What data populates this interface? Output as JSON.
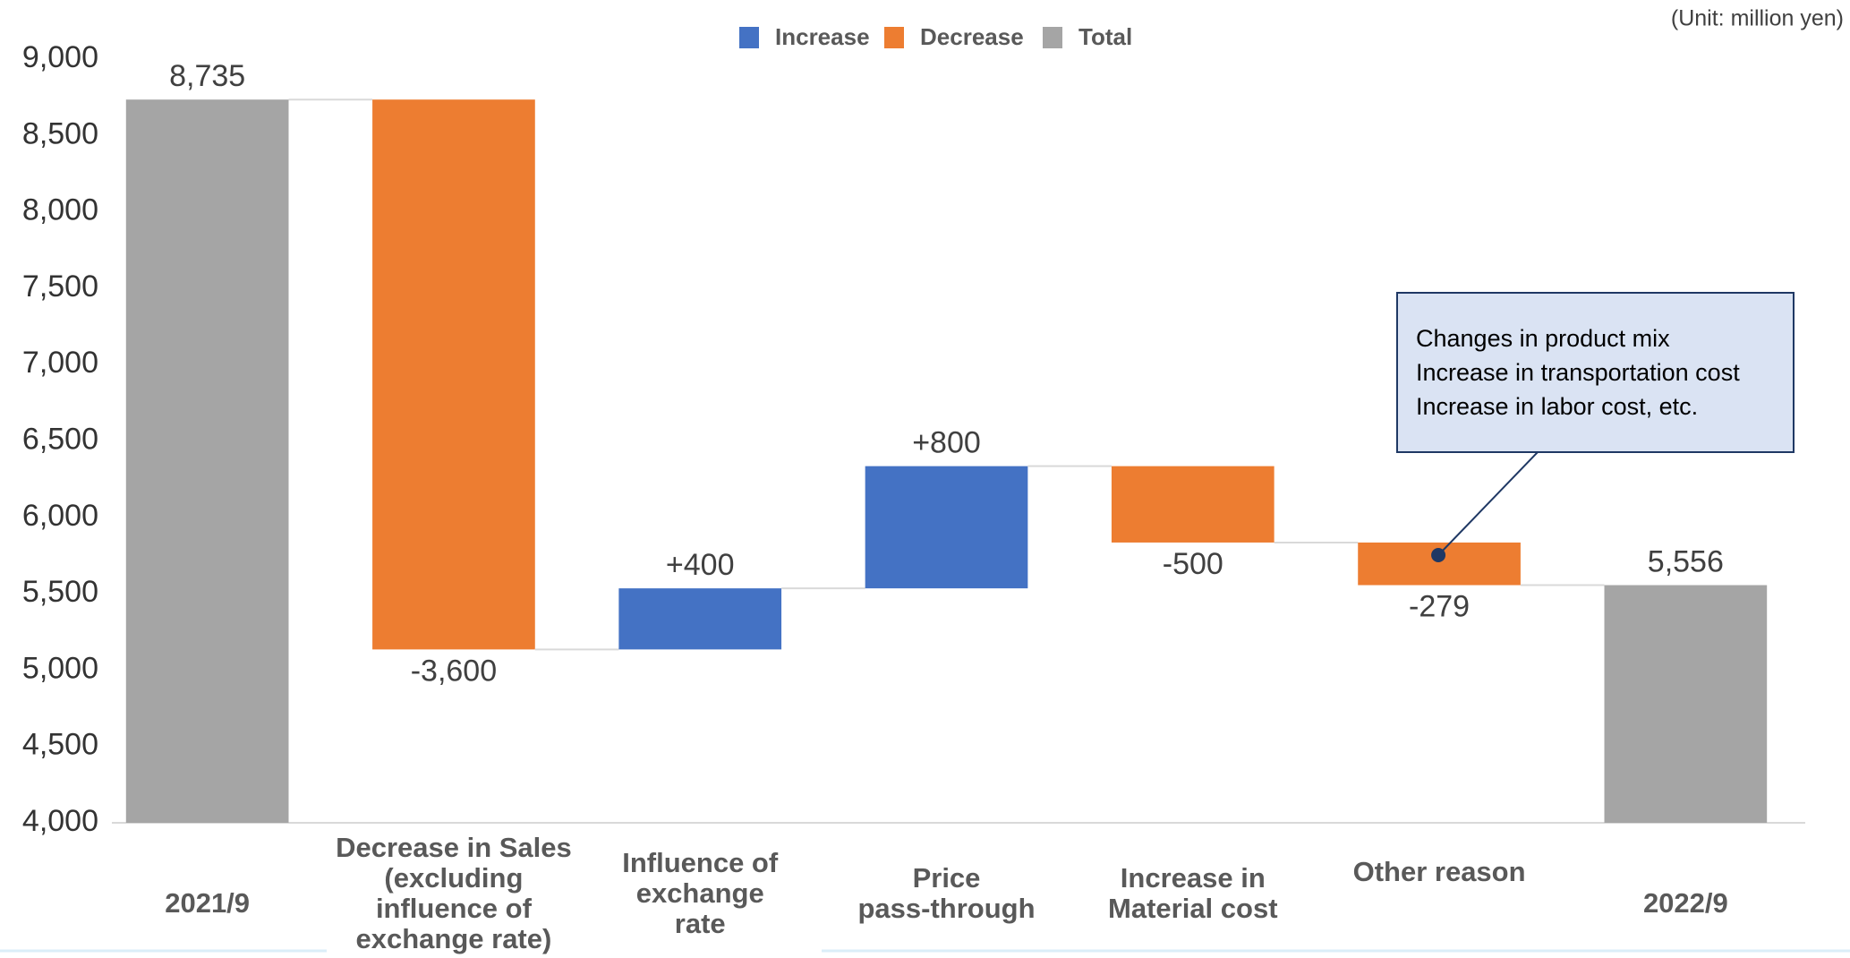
{
  "chart_data": {
    "type": "waterfall",
    "unit_note": "(Unit: million yen)",
    "categories": [
      "2021/9",
      "Decrease in Sales\n(excluding\ninfluence of\nexchange rate)",
      "Influence of\nexchange\nrate",
      "Price\npass-through",
      "Increase in\nMaterial cost",
      "Other reason",
      "2022/9"
    ],
    "values": [
      8735,
      -3600,
      400,
      800,
      -500,
      -279,
      5556
    ],
    "value_labels": [
      "8,735",
      "-3,600",
      "+400",
      "+800",
      "-500",
      "-279",
      "5,556"
    ],
    "measure": [
      "total",
      "relative",
      "relative",
      "relative",
      "relative",
      "relative",
      "total"
    ],
    "legend": [
      {
        "name": "Increase",
        "color": "#4472c4"
      },
      {
        "name": "Decrease",
        "color": "#ed7d31"
      },
      {
        "name": "Total",
        "color": "#a5a5a5"
      }
    ],
    "ylim": [
      4000,
      9000
    ],
    "yticks": [
      {
        "value": 4000,
        "label": "4,000"
      },
      {
        "value": 4500,
        "label": "4,500"
      },
      {
        "value": 5000,
        "label": "5,000"
      },
      {
        "value": 5500,
        "label": "5,500"
      },
      {
        "value": 6000,
        "label": "6,000"
      },
      {
        "value": 6500,
        "label": "6,500"
      },
      {
        "value": 7000,
        "label": "7,000"
      },
      {
        "value": 7500,
        "label": "7,500"
      },
      {
        "value": 8000,
        "label": "8,000"
      },
      {
        "value": 8500,
        "label": "8,500"
      },
      {
        "value": 9000,
        "label": "9,000"
      }
    ],
    "grid": false,
    "annotation": {
      "lines": [
        "Changes in product mix",
        "Increase in transportation cost",
        "Increase in labor cost, etc."
      ],
      "category_index": 5
    }
  }
}
